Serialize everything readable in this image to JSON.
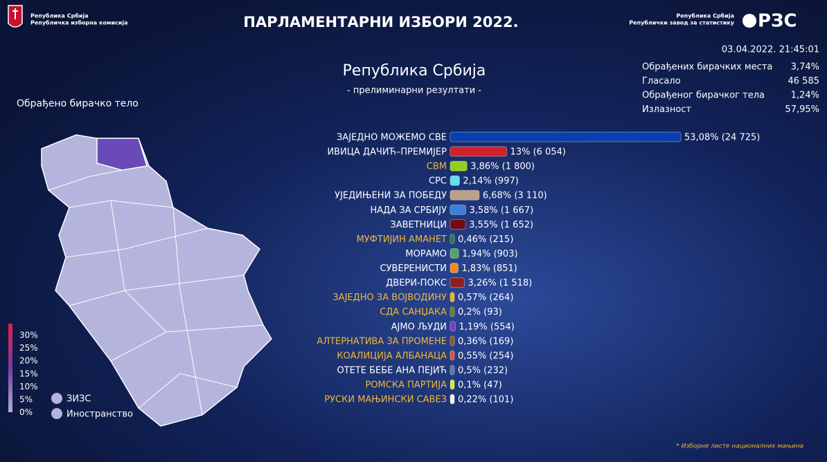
{
  "header": {
    "title": "ПАРЛАМЕНТАРНИ ИЗБОРИ 2022.",
    "left_logo_line1": "Република Србија",
    "left_logo_line2": "Републичка изборна комисија",
    "right_logo_line1": "Република Србија",
    "right_logo_line2": "Републички завод за статистику",
    "right_logo_mark": "РЗС",
    "datetime": "03.04.2022. 21:45:01"
  },
  "stats": [
    {
      "label": "Обрађених бирачких места",
      "value": "3,74%"
    },
    {
      "label": "Гласало",
      "value": "46 585"
    },
    {
      "label": "Обрађеног бирачког тела",
      "value": "1,24%"
    },
    {
      "label": "Излазност",
      "value": "57,95%"
    }
  ],
  "map": {
    "title": "Обрађено бирачко тело",
    "legend_ticks": [
      "30%",
      "25%",
      "20%",
      "15%",
      "10%",
      "5%",
      "0%"
    ],
    "items": [
      "ЗИЗС",
      "Иностранство"
    ]
  },
  "footnote": "* Изборне листе националних мањина",
  "chart_data": {
    "type": "bar",
    "orientation": "horizontal",
    "title": "Република Србија",
    "subtitle": "- прелиминарни резултати -",
    "categories": [
      "ЗАЈЕДНО МОЖЕМО СВЕ",
      "ИВИЦА ДАЧИЋ–ПРЕМИЈЕР",
      "СВМ",
      "СРС",
      "УЈЕДИЊЕНИ ЗА ПОБЕДУ",
      "НАДА ЗА СРБИЈУ",
      "ЗАВЕТНИЦИ",
      "МУФТИЈИН АМАНЕТ",
      "МОРАМО",
      "СУВЕРЕНИСТИ",
      "ДВЕРИ-ПОКС",
      "ЗАЈЕДНО ЗА ВОЈВОДИНУ",
      "СДА САНЏАКА",
      "АЈМО ЉУДИ",
      "АЛТЕРНАТИВА ЗА ПРОМЕНЕ",
      "КОАЛИЦИЈА АЛБАНАЦА",
      "ОТЕТЕ БЕБЕ АНА ПЕЈИЋ",
      "РОМСКА ПАРТИЈА",
      "РУСКИ МАЊИНСКИ САВЕЗ"
    ],
    "values": [
      53.08,
      13,
      3.86,
      2.14,
      6.68,
      3.58,
      3.55,
      0.46,
      1.94,
      1.83,
      3.26,
      0.57,
      0.2,
      1.19,
      0.36,
      0.55,
      0.5,
      0.1,
      0.22
    ],
    "value_labels": [
      "53,08% (24 725)",
      "13% (6 054)",
      "3,86% (1 800)",
      "2,14% (997)",
      "6,68% (3 110)",
      "3,58% (1 667)",
      "3,55% (1 652)",
      "0,46% (215)",
      "1,94% (903)",
      "1,83% (851)",
      "3,26% (1 518)",
      "0,57% (264)",
      "0,2% (93)",
      "1,19% (554)",
      "0,36% (169)",
      "0,55% (254)",
      "0,5% (232)",
      "0,1% (47)",
      "0,22% (101)"
    ],
    "colors": [
      "#0a3fb0",
      "#d0202c",
      "#8fd01c",
      "#5de0f0",
      "#b9a088",
      "#3c7fd8",
      "#6e0d12",
      "#2f7a3c",
      "#4ea860",
      "#f08a1c",
      "#8e1e24",
      "#f0b21c",
      "#6f7a2a",
      "#7b3ad0",
      "#8a5a2a",
      "#e0503a",
      "#5a7a90",
      "#d8e838",
      "#f0f0f0"
    ],
    "label_colors": [
      "#ffffff",
      "#ffffff",
      "#f0b838",
      "#ffffff",
      "#ffffff",
      "#ffffff",
      "#ffffff",
      "#f0b838",
      "#ffffff",
      "#ffffff",
      "#ffffff",
      "#f0b838",
      "#f0b838",
      "#ffffff",
      "#f0b838",
      "#f0b838",
      "#ffffff",
      "#f0b838",
      "#f0b838"
    ]
  }
}
